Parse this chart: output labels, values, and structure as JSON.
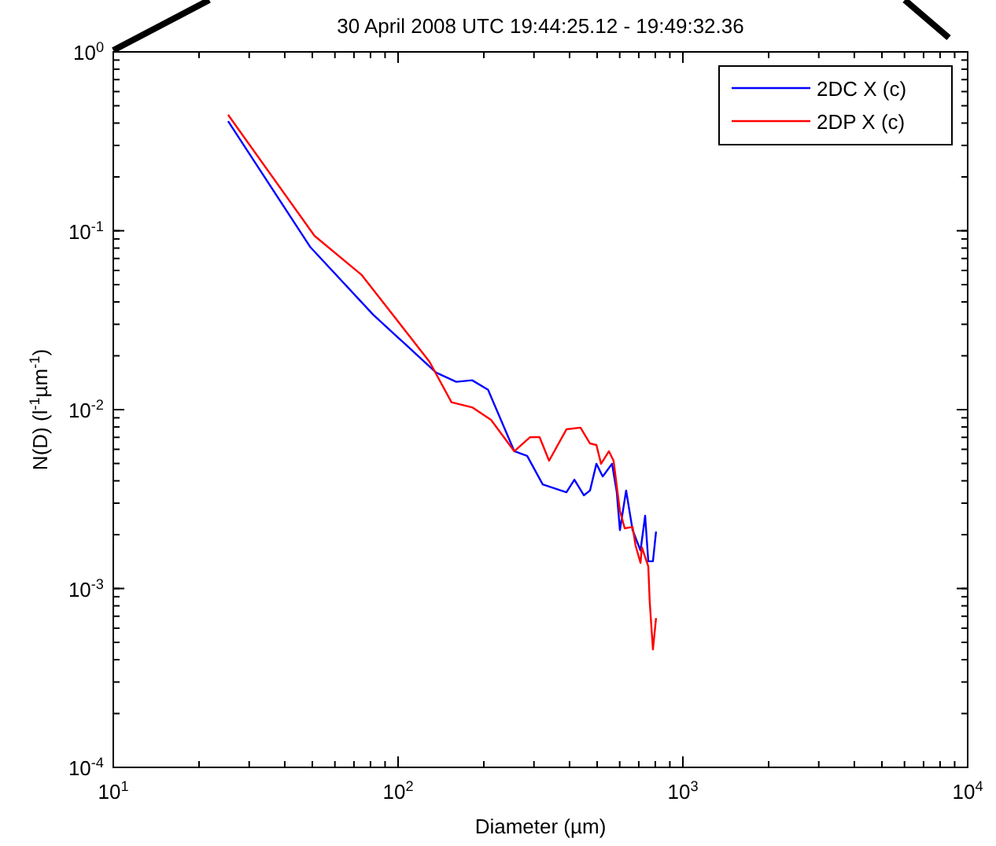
{
  "chart_data": {
    "type": "line",
    "title": "30 April 2008   UTC 19:44:25.12 - 19:49:32.36",
    "xlabel": "Diameter  (µm)",
    "ylabel": "N(D)    (l$^{-1}$µm$^{-1}$)",
    "log": "xy",
    "grid": false,
    "legend": "top right",
    "line_style": "solid",
    "marker": "none",
    "xlim": [
      10,
      10000
    ],
    "xticks": [
      {
        "value": 10,
        "label": "10$^{1}$"
      },
      {
        "value": 100,
        "label": "10$^{2}$"
      },
      {
        "value": 1000,
        "label": "10$^{3}$"
      },
      {
        "value": 10000,
        "label": "10$^{4}$"
      }
    ],
    "ylim": [
      0.0001,
      1
    ],
    "yticks": [
      {
        "value": 0.0001,
        "label": "10$^{-4}$"
      },
      {
        "value": 0.001,
        "label": "10$^{-3}$"
      },
      {
        "value": 0.01,
        "label": "10$^{-2}$"
      },
      {
        "value": 0.1,
        "label": "10$^{-1}$"
      },
      {
        "value": 1,
        "label": "10$^{0}$"
      }
    ],
    "series": [
      {
        "name": "2DC X (c)",
        "color": "#0000ff",
        "x": [
          25.3,
          49.1,
          81.7,
          136,
          160,
          182,
          207,
          256,
          284,
          322,
          390,
          416,
          449,
          472,
          497,
          523,
          564,
          586,
          601,
          632,
          666,
          710,
          737,
          756,
          785,
          805
        ],
        "values": [
          0.41,
          0.0813,
          0.034,
          0.0161,
          0.0143,
          0.0146,
          0.0129,
          0.00585,
          0.00551,
          0.00382,
          0.00345,
          0.00406,
          0.00332,
          0.00353,
          0.00498,
          0.00423,
          0.00498,
          0.00345,
          0.00212,
          0.00353,
          0.00212,
          0.00163,
          0.00255,
          0.00142,
          0.00142,
          0.00208
        ]
      },
      {
        "name": "2DP X (c)",
        "color": "#ff0000",
        "x": [
          25.3,
          50.9,
          74.6,
          129,
          154,
          182,
          212,
          256,
          291,
          314,
          339,
          390,
          437,
          472,
          497,
          516,
          550,
          571,
          601,
          625,
          666,
          682,
          710,
          718,
          756,
          765,
          785,
          805
        ],
        "values": [
          0.445,
          0.0936,
          0.0565,
          0.0185,
          0.011,
          0.0103,
          0.00877,
          0.00585,
          0.00702,
          0.00702,
          0.00518,
          0.00776,
          0.00793,
          0.00647,
          0.00634,
          0.00498,
          0.00585,
          0.00518,
          0.00271,
          0.00217,
          0.00221,
          0.00174,
          0.00139,
          0.0017,
          0.00133,
          0.000837,
          0.000456,
          0.000684
        ]
      }
    ]
  }
}
